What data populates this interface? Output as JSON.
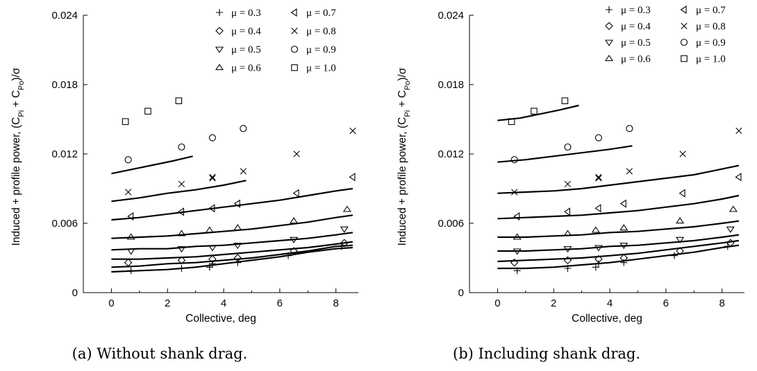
{
  "chart_data": [
    {
      "type": "scatter",
      "caption": "(a) Without shank drag.",
      "xlabel": "Collective, deg",
      "ylabel_parts": [
        "Induced + profile power, (C",
        "Pi",
        " + C",
        "Po",
        ")/σ"
      ],
      "xlim": [
        -1,
        8.8
      ],
      "ylim": [
        0,
        0.024
      ],
      "xticks": [
        0,
        2,
        4,
        6,
        8
      ],
      "xticklabels": [
        "0",
        "2",
        "4",
        "6",
        "8"
      ],
      "yticks": [
        0,
        0.006,
        0.012,
        0.018,
        0.024
      ],
      "yticklabels": [
        "0",
        "0.006",
        "0.012",
        "0.018",
        "0.024"
      ],
      "legend_position": "top-right",
      "series": [
        {
          "name": "μ = 0.3",
          "marker": "plus",
          "points": [
            [
              0.7,
              0.0019
            ],
            [
              2.5,
              0.0021
            ],
            [
              3.5,
              0.0022
            ],
            [
              3.6,
              0.0025
            ],
            [
              4.5,
              0.0026
            ],
            [
              6.3,
              0.0032
            ],
            [
              8.2,
              0.004
            ]
          ],
          "curve": [
            [
              0,
              0.0018
            ],
            [
              1,
              0.0019
            ],
            [
              2,
              0.002
            ],
            [
              3,
              0.0022
            ],
            [
              4,
              0.0025
            ],
            [
              5,
              0.0028
            ],
            [
              6,
              0.0031
            ],
            [
              7,
              0.0035
            ],
            [
              8,
              0.0038
            ],
            [
              8.6,
              0.0039
            ]
          ]
        },
        {
          "name": "μ = 0.4",
          "marker": "diamond",
          "points": [
            [
              0.6,
              0.0026
            ],
            [
              2.5,
              0.0028
            ],
            [
              3.6,
              0.0029
            ],
            [
              4.5,
              0.003
            ],
            [
              6.5,
              0.0036
            ],
            [
              8.3,
              0.0043
            ]
          ],
          "curve": [
            [
              0,
              0.0022
            ],
            [
              1,
              0.0023
            ],
            [
              2,
              0.0025
            ],
            [
              3,
              0.0026
            ],
            [
              4,
              0.0028
            ],
            [
              5,
              0.003
            ],
            [
              6,
              0.0033
            ],
            [
              7,
              0.0036
            ],
            [
              8,
              0.004
            ],
            [
              8.6,
              0.0041
            ]
          ]
        },
        {
          "name": "μ = 0.5",
          "marker": "triangle-down",
          "points": [
            [
              0.7,
              0.0036
            ],
            [
              2.5,
              0.0038
            ],
            [
              3.6,
              0.0039
            ],
            [
              4.5,
              0.0041
            ],
            [
              6.5,
              0.0046
            ],
            [
              8.3,
              0.0055
            ]
          ],
          "curve": [
            [
              0,
              0.0029
            ],
            [
              1,
              0.0029
            ],
            [
              2,
              0.003
            ],
            [
              3,
              0.0031
            ],
            [
              4,
              0.0033
            ],
            [
              5,
              0.0035
            ],
            [
              6,
              0.0037
            ],
            [
              7,
              0.0039
            ],
            [
              8,
              0.0042
            ],
            [
              8.6,
              0.0044
            ]
          ]
        },
        {
          "name": "μ = 0.6",
          "marker": "triangle-up",
          "points": [
            [
              0.7,
              0.0048
            ],
            [
              2.5,
              0.0051
            ],
            [
              3.5,
              0.0054
            ],
            [
              4.5,
              0.0056
            ],
            [
              6.5,
              0.0062
            ],
            [
              8.4,
              0.0072
            ]
          ],
          "curve": [
            [
              0,
              0.0037
            ],
            [
              1,
              0.0038
            ],
            [
              2,
              0.0038
            ],
            [
              3,
              0.004
            ],
            [
              4,
              0.0041
            ],
            [
              5,
              0.0043
            ],
            [
              6,
              0.0045
            ],
            [
              7,
              0.0047
            ],
            [
              8,
              0.005
            ],
            [
              8.6,
              0.0052
            ]
          ]
        },
        {
          "name": "μ = 0.7",
          "marker": "triangle-left",
          "points": [
            [
              0.7,
              0.0066
            ],
            [
              2.5,
              0.007
            ],
            [
              3.6,
              0.0073
            ],
            [
              4.5,
              0.0077
            ],
            [
              6.6,
              0.0086
            ],
            [
              8.6,
              0.01
            ]
          ],
          "curve": [
            [
              0,
              0.0047
            ],
            [
              1,
              0.0048
            ],
            [
              2,
              0.0049
            ],
            [
              3,
              0.0051
            ],
            [
              4,
              0.0053
            ],
            [
              5,
              0.0055
            ],
            [
              6,
              0.0058
            ],
            [
              7,
              0.0061
            ],
            [
              8,
              0.0065
            ],
            [
              8.6,
              0.0067
            ]
          ]
        },
        {
          "name": "μ = 0.8",
          "marker": "cross",
          "points": [
            [
              0.6,
              0.0087
            ],
            [
              2.5,
              0.0094
            ],
            [
              3.6,
              0.0099
            ],
            [
              3.6,
              0.01
            ],
            [
              4.7,
              0.0105
            ],
            [
              6.6,
              0.012
            ],
            [
              8.6,
              0.014
            ]
          ],
          "curve": [
            [
              0,
              0.0063
            ],
            [
              1,
              0.0065
            ],
            [
              2,
              0.0068
            ],
            [
              3,
              0.0071
            ],
            [
              4,
              0.0074
            ],
            [
              5,
              0.0077
            ],
            [
              6,
              0.008
            ],
            [
              7,
              0.0084
            ],
            [
              8,
              0.0088
            ],
            [
              8.6,
              0.009
            ]
          ]
        },
        {
          "name": "μ = 0.9",
          "marker": "circle",
          "points": [
            [
              0.6,
              0.0115
            ],
            [
              2.5,
              0.0126
            ],
            [
              3.6,
              0.0134
            ],
            [
              4.7,
              0.0142
            ]
          ],
          "curve": [
            [
              0,
              0.0079
            ],
            [
              1,
              0.0082
            ],
            [
              2,
              0.0086
            ],
            [
              3,
              0.0089
            ],
            [
              4,
              0.0093
            ],
            [
              4.8,
              0.0097
            ]
          ]
        },
        {
          "name": "μ = 1.0",
          "marker": "square",
          "points": [
            [
              0.5,
              0.0148
            ],
            [
              1.3,
              0.0157
            ],
            [
              2.4,
              0.0166
            ]
          ],
          "curve": [
            [
              0,
              0.0103
            ],
            [
              0.8,
              0.0107
            ],
            [
              1.6,
              0.0111
            ],
            [
              2.2,
              0.0114
            ],
            [
              2.9,
              0.0118
            ]
          ]
        }
      ]
    },
    {
      "type": "scatter",
      "caption": "(b) Including shank drag.",
      "xlabel": "Collective, deg",
      "ylabel_parts": [
        "Induced + profile power, (C",
        "Pi",
        " + C",
        "Po",
        ")/σ"
      ],
      "xlim": [
        -1,
        8.8
      ],
      "ylim": [
        0,
        0.024
      ],
      "xticks": [
        0,
        2,
        4,
        6,
        8
      ],
      "xticklabels": [
        "0",
        "2",
        "4",
        "6",
        "8"
      ],
      "yticks": [
        0,
        0.006,
        0.012,
        0.018,
        0.024
      ],
      "yticklabels": [
        "0",
        "0.006",
        "0.012",
        "0.018",
        "0.024"
      ],
      "legend_position": "top-right",
      "series": [
        {
          "name": "μ = 0.3",
          "marker": "plus",
          "points": [
            [
              0.7,
              0.0019
            ],
            [
              2.5,
              0.0021
            ],
            [
              3.5,
              0.0022
            ],
            [
              3.6,
              0.0025
            ],
            [
              4.5,
              0.0026
            ],
            [
              6.3,
              0.0032
            ],
            [
              8.2,
              0.004
            ]
          ],
          "curve": [
            [
              0,
              0.0021
            ],
            [
              1,
              0.0021
            ],
            [
              2,
              0.0022
            ],
            [
              3,
              0.0024
            ],
            [
              4,
              0.0026
            ],
            [
              5,
              0.0029
            ],
            [
              6,
              0.0032
            ],
            [
              7,
              0.0035
            ],
            [
              8,
              0.0039
            ],
            [
              8.6,
              0.0041
            ]
          ]
        },
        {
          "name": "μ = 0.4",
          "marker": "diamond",
          "points": [
            [
              0.6,
              0.0026
            ],
            [
              2.5,
              0.0028
            ],
            [
              3.6,
              0.0029
            ],
            [
              4.5,
              0.003
            ],
            [
              6.5,
              0.0036
            ],
            [
              8.3,
              0.0043
            ]
          ],
          "curve": [
            [
              0,
              0.0027
            ],
            [
              1,
              0.0028
            ],
            [
              2,
              0.0029
            ],
            [
              3,
              0.003
            ],
            [
              4,
              0.0032
            ],
            [
              5,
              0.0034
            ],
            [
              6,
              0.0037
            ],
            [
              7,
              0.004
            ],
            [
              8,
              0.0043
            ],
            [
              8.6,
              0.0045
            ]
          ]
        },
        {
          "name": "μ = 0.5",
          "marker": "triangle-down",
          "points": [
            [
              0.7,
              0.0036
            ],
            [
              2.5,
              0.0038
            ],
            [
              3.6,
              0.0039
            ],
            [
              4.5,
              0.0041
            ],
            [
              6.5,
              0.0046
            ],
            [
              8.3,
              0.0055
            ]
          ],
          "curve": [
            [
              0,
              0.0036
            ],
            [
              1,
              0.0036
            ],
            [
              2,
              0.0037
            ],
            [
              3,
              0.0038
            ],
            [
              4,
              0.004
            ],
            [
              5,
              0.0041
            ],
            [
              6,
              0.0043
            ],
            [
              7,
              0.0045
            ],
            [
              8,
              0.0048
            ],
            [
              8.6,
              0.005
            ]
          ]
        },
        {
          "name": "μ = 0.6",
          "marker": "triangle-up",
          "points": [
            [
              0.7,
              0.0048
            ],
            [
              2.5,
              0.0051
            ],
            [
              3.5,
              0.0054
            ],
            [
              4.5,
              0.0056
            ],
            [
              6.5,
              0.0062
            ],
            [
              8.4,
              0.0072
            ]
          ],
          "curve": [
            [
              0,
              0.0048
            ],
            [
              1,
              0.0048
            ],
            [
              2,
              0.0049
            ],
            [
              3,
              0.005
            ],
            [
              4,
              0.0052
            ],
            [
              5,
              0.0053
            ],
            [
              6,
              0.0055
            ],
            [
              7,
              0.0057
            ],
            [
              8,
              0.006
            ],
            [
              8.6,
              0.0062
            ]
          ]
        },
        {
          "name": "μ = 0.7",
          "marker": "triangle-left",
          "points": [
            [
              0.7,
              0.0066
            ],
            [
              2.5,
              0.007
            ],
            [
              3.6,
              0.0073
            ],
            [
              4.5,
              0.0077
            ],
            [
              6.6,
              0.0086
            ],
            [
              8.6,
              0.01
            ]
          ],
          "curve": [
            [
              0,
              0.0064
            ],
            [
              1,
              0.0065
            ],
            [
              2,
              0.0066
            ],
            [
              3,
              0.0067
            ],
            [
              4,
              0.0069
            ],
            [
              5,
              0.0071
            ],
            [
              6,
              0.0074
            ],
            [
              7,
              0.0077
            ],
            [
              8,
              0.0081
            ],
            [
              8.6,
              0.0084
            ]
          ]
        },
        {
          "name": "μ = 0.8",
          "marker": "cross",
          "points": [
            [
              0.6,
              0.0087
            ],
            [
              2.5,
              0.0094
            ],
            [
              3.6,
              0.0099
            ],
            [
              3.6,
              0.01
            ],
            [
              4.7,
              0.0105
            ],
            [
              6.6,
              0.012
            ],
            [
              8.6,
              0.014
            ]
          ],
          "curve": [
            [
              0,
              0.0086
            ],
            [
              1,
              0.0087
            ],
            [
              2,
              0.0088
            ],
            [
              3,
              0.009
            ],
            [
              4,
              0.0093
            ],
            [
              5,
              0.0096
            ],
            [
              6,
              0.0099
            ],
            [
              7,
              0.0102
            ],
            [
              8,
              0.0107
            ],
            [
              8.6,
              0.011
            ]
          ]
        },
        {
          "name": "μ = 0.9",
          "marker": "circle",
          "points": [
            [
              0.6,
              0.0115
            ],
            [
              2.5,
              0.0126
            ],
            [
              3.6,
              0.0134
            ],
            [
              4.7,
              0.0142
            ]
          ],
          "curve": [
            [
              0,
              0.0113
            ],
            [
              1,
              0.0115
            ],
            [
              2,
              0.0118
            ],
            [
              3,
              0.0121
            ],
            [
              4,
              0.0124
            ],
            [
              4.8,
              0.0127
            ]
          ]
        },
        {
          "name": "μ = 1.0",
          "marker": "square",
          "points": [
            [
              0.5,
              0.0148
            ],
            [
              1.3,
              0.0157
            ],
            [
              2.4,
              0.0166
            ]
          ],
          "curve": [
            [
              0,
              0.0149
            ],
            [
              0.8,
              0.0151
            ],
            [
              1.6,
              0.0155
            ],
            [
              2.2,
              0.0158
            ],
            [
              2.9,
              0.0162
            ]
          ]
        }
      ]
    }
  ]
}
